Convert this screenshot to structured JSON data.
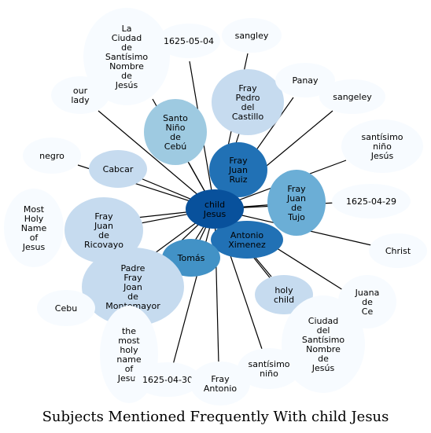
{
  "title": "Subjects Mentioned Frequently With child Jesus",
  "center": {
    "label": "child\nJesus",
    "color": "#08519c"
  },
  "nodes": [
    {
      "id": "la-ciudad",
      "label": "La\nCiudad\nde\nSantísimo\nNombre\nde\nJesús",
      "color": "#f7fbff"
    },
    {
      "id": "date-0504",
      "label": "1625-05-04",
      "color": "#f7fbff"
    },
    {
      "id": "sangley-top",
      "label": "sangley",
      "color": "#f7fbff"
    },
    {
      "id": "our-lady",
      "label": "our\nlady",
      "color": "#f7fbff"
    },
    {
      "id": "fray-pedro",
      "label": "Fray\nPedro\ndel\nCastillo",
      "color": "#c6dbef"
    },
    {
      "id": "panay",
      "label": "Panay",
      "color": "#f7fbff"
    },
    {
      "id": "sangeley",
      "label": "sangeley",
      "color": "#f7fbff"
    },
    {
      "id": "santo-nino",
      "label": "Santo\nNiño\nde\nCebú",
      "color": "#9ecae1"
    },
    {
      "id": "santisimo-nino-jesus",
      "label": "santísimo\nniño\nJesús",
      "color": "#f7fbff"
    },
    {
      "id": "fray-juan-ruiz",
      "label": "Fray\nJuan\nRuiz",
      "color": "#2171b5"
    },
    {
      "id": "negro",
      "label": "negro",
      "color": "#f7fbff"
    },
    {
      "id": "cabcar",
      "label": "Cabcar",
      "color": "#c6dbef"
    },
    {
      "id": "fray-juan-tujo",
      "label": "Fray\nJuan\nde\nTujo",
      "color": "#6baed6"
    },
    {
      "id": "date-0429",
      "label": "1625-04-29",
      "color": "#f7fbff"
    },
    {
      "id": "most-holy",
      "label": "Most\nHoly\nName\nof\nJesus",
      "color": "#f7fbff"
    },
    {
      "id": "fray-juan-ricovayo",
      "label": "Fray\nJuan\nde\nRicovayo",
      "color": "#c6dbef"
    },
    {
      "id": "antonio-ximenez",
      "label": "Antonio\nXimenez",
      "color": "#2171b5"
    },
    {
      "id": "christ",
      "label": "Christ",
      "color": "#f7fbff"
    },
    {
      "id": "tomas",
      "label": "Tomás",
      "color": "#4292c6"
    },
    {
      "id": "padre-fray-joan",
      "label": "Padre\nFray\nJoan\nde\nMontemayor",
      "color": "#c6dbef"
    },
    {
      "id": "holy-child",
      "label": "holy\nchild",
      "color": "#c6dbef"
    },
    {
      "id": "juana-de-ce",
      "label": "Juana\nde\nCe",
      "color": "#f7fbff"
    },
    {
      "id": "cebu",
      "label": "Cebu",
      "color": "#f7fbff"
    },
    {
      "id": "ciudad-del",
      "label": "Ciudad\ndel\nSantísimo\nNombre\nde\nJesús",
      "color": "#f7fbff"
    },
    {
      "id": "the-most-holy",
      "label": "the\nmost\nholy\nname\nof\nJesus",
      "color": "#f7fbff"
    },
    {
      "id": "santisimo-nino",
      "label": "santísimo\nniño",
      "color": "#f7fbff"
    },
    {
      "id": "date-0430",
      "label": "1625-04-30",
      "color": "#f7fbff"
    },
    {
      "id": "fray-antonio",
      "label": "Fray\nAntonio",
      "color": "#f7fbff"
    }
  ]
}
